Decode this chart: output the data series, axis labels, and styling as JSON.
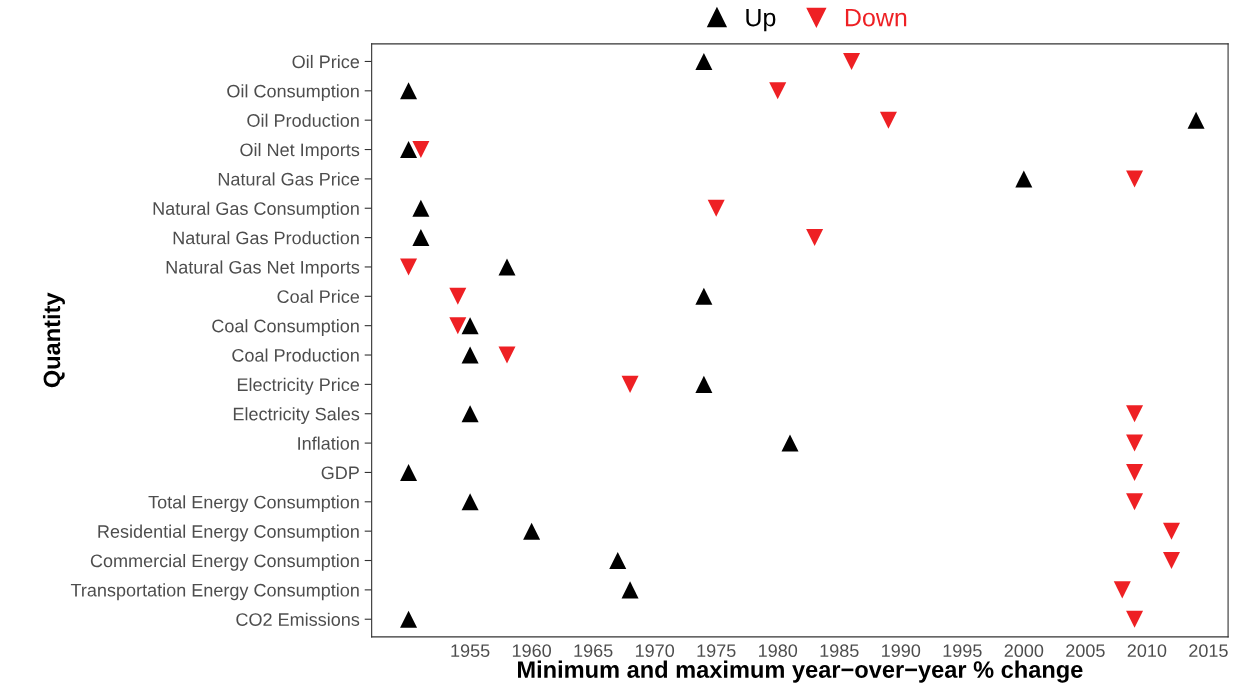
{
  "chart_data": {
    "type": "scatter",
    "orientation": "horizontal",
    "xlabel": "Minimum and maximum year−over−year % change",
    "ylabel": "Quantity",
    "categories": [
      "Oil Price",
      "Oil Consumption",
      "Oil Production",
      "Oil Net Imports",
      "Natural Gas Price",
      "Natural Gas Consumption",
      "Natural Gas Production",
      "Natural Gas Net Imports",
      "Coal Price",
      "Coal Consumption",
      "Coal Production",
      "Electricity Price",
      "Electricity Sales",
      "Inflation",
      "GDP",
      "Total Energy Consumption",
      "Residential Energy Consumption",
      "Commercial Energy Consumption",
      "Transportation Energy Consumption",
      "CO2 Emissions"
    ],
    "series": [
      {
        "name": "Up",
        "color": "#000000",
        "marker": "triangle",
        "values": [
          1974,
          1950,
          2014,
          1950,
          2000,
          1951,
          1951,
          1958,
          1974,
          1955,
          1955,
          1974,
          1955,
          1981,
          1950,
          1955,
          1960,
          1967,
          1968,
          1950
        ]
      },
      {
        "name": "Down",
        "color": "#ee2024",
        "marker": "triangle_down",
        "values": [
          1986,
          1980,
          1989,
          1951,
          2009,
          1975,
          1983,
          1950,
          1954,
          1954,
          1958,
          1968,
          2009,
          2009,
          2009,
          2009,
          2012,
          2012,
          2008,
          2009
        ]
      }
    ],
    "xlim": [
      1947,
      2016.6
    ],
    "xticks": [
      1955,
      1960,
      1965,
      1970,
      1975,
      1980,
      1985,
      1990,
      1995,
      2000,
      2005,
      2010,
      2015
    ],
    "grid": false,
    "legend": "top"
  }
}
